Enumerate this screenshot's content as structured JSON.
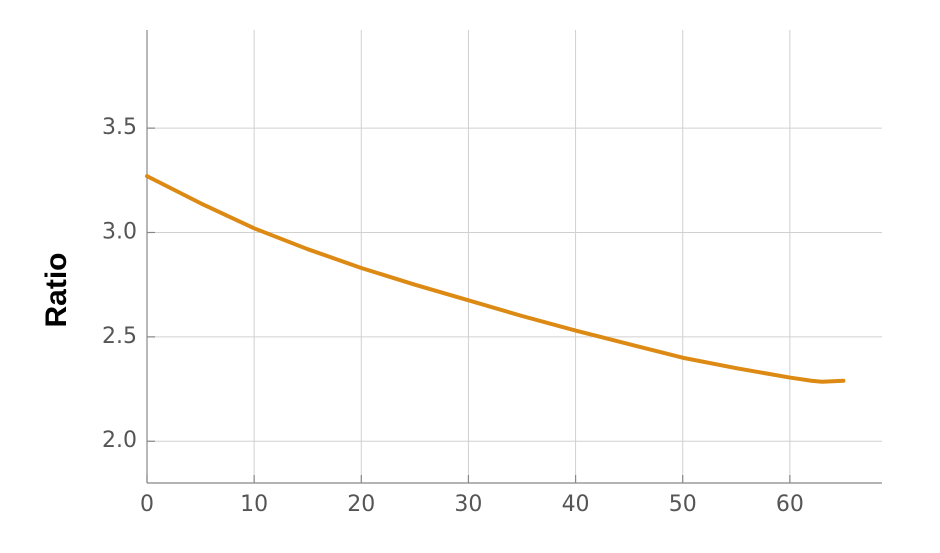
{
  "chart_data": {
    "type": "line",
    "y_label": "Ratio",
    "x": [
      0,
      5,
      10,
      15,
      20,
      25,
      30,
      35,
      40,
      45,
      50,
      55,
      60,
      62,
      63,
      65
    ],
    "series": [
      {
        "name": "Ratio",
        "color": "#dc8a14",
        "values": [
          3.27,
          3.14,
          3.02,
          2.92,
          2.83,
          2.75,
          2.675,
          2.6,
          2.53,
          2.465,
          2.4,
          2.35,
          2.305,
          2.29,
          2.285,
          2.29
        ]
      }
    ],
    "xlim": [
      0,
      68.6
    ],
    "ylim": [
      1.8,
      3.97
    ],
    "xticks": [
      0,
      10,
      20,
      30,
      40,
      50,
      60
    ],
    "yticks": [
      {
        "value": 2,
        "label": "2.0"
      },
      2.5,
      {
        "value": 3,
        "label": "3.0"
      },
      3.5
    ],
    "grid": true
  }
}
